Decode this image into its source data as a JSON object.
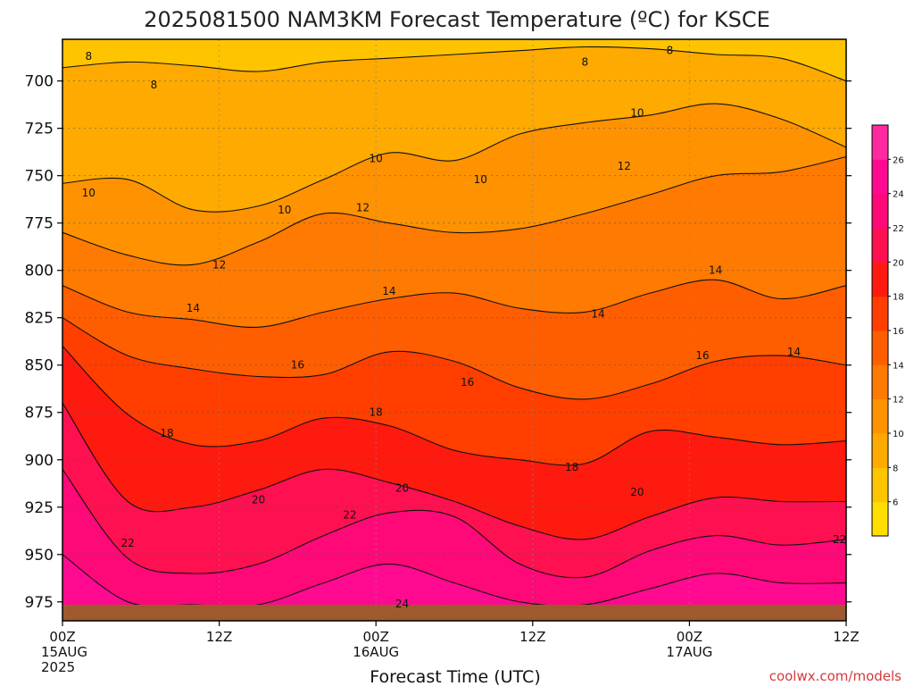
{
  "chart_data": {
    "type": "contour",
    "title": "2025081500 NAM3KM Forecast Temperature (ºC) for KSCE",
    "xlabel": "Forecast Time (UTC)",
    "ylabel": "",
    "credit": "coolwx.com/models",
    "x_ticks": [
      {
        "hour": 0,
        "line1": "00Z",
        "line2": "15AUG",
        "line3": "2025"
      },
      {
        "hour": 12,
        "line1": "12Z",
        "line2": "",
        "line3": ""
      },
      {
        "hour": 24,
        "line1": "00Z",
        "line2": "16AUG",
        "line3": ""
      },
      {
        "hour": 36,
        "line1": "12Z",
        "line2": "",
        "line3": ""
      },
      {
        "hour": 48,
        "line1": "00Z",
        "line2": "17AUG",
        "line3": ""
      },
      {
        "hour": 60,
        "line1": "12Z",
        "line2": "",
        "line3": ""
      }
    ],
    "xlim_hours": [
      0,
      60
    ],
    "y_ticks": [
      "700",
      "725",
      "750",
      "775",
      "800",
      "825",
      "850",
      "875",
      "900",
      "925",
      "950",
      "975"
    ],
    "ylim_hpa": [
      678,
      985
    ],
    "surface_pressure_hpa": 976,
    "grid": true,
    "colorbar": {
      "levels": [
        6,
        8,
        10,
        12,
        14,
        16,
        18,
        20,
        22,
        24,
        26
      ],
      "colors": [
        "#ffde00",
        "#ffc400",
        "#ffaa00",
        "#ff9200",
        "#ff7a00",
        "#ff5e00",
        "#ff3e00",
        "#ff1a10",
        "#ff1050",
        "#ff0878",
        "#ff0a90",
        "#ff2aa0"
      ]
    },
    "contour_levels": [
      8,
      10,
      12,
      14,
      16,
      18,
      20,
      22,
      24
    ],
    "contours": [
      {
        "level": 8,
        "pressure_hpa": [
          693,
          690,
          692,
          695,
          690,
          688,
          686,
          684,
          682,
          683,
          686,
          688,
          700
        ]
      },
      {
        "level": 10,
        "pressure_hpa": [
          754,
          752,
          768,
          766,
          752,
          738,
          742,
          728,
          722,
          718,
          712,
          720,
          735
        ]
      },
      {
        "level": 12,
        "pressure_hpa": [
          780,
          792,
          797,
          785,
          770,
          775,
          780,
          778,
          770,
          760,
          750,
          748,
          740
        ]
      },
      {
        "level": 14,
        "pressure_hpa": [
          808,
          822,
          826,
          830,
          822,
          815,
          812,
          820,
          822,
          812,
          805,
          815,
          808
        ]
      },
      {
        "level": 16,
        "pressure_hpa": [
          825,
          845,
          852,
          856,
          855,
          843,
          848,
          862,
          868,
          860,
          848,
          845,
          850
        ]
      },
      {
        "level": 18,
        "pressure_hpa": [
          840,
          876,
          892,
          890,
          878,
          882,
          895,
          900,
          902,
          885,
          888,
          892,
          890
        ]
      },
      {
        "level": 20,
        "pressure_hpa": [
          870,
          922,
          925,
          916,
          905,
          912,
          922,
          935,
          942,
          930,
          920,
          922,
          922
        ]
      },
      {
        "level": 22,
        "pressure_hpa": [
          905,
          952,
          960,
          955,
          940,
          928,
          930,
          955,
          962,
          948,
          940,
          945,
          942
        ]
      },
      {
        "level": 24,
        "pressure_hpa": [
          950,
          975,
          978,
          978,
          965,
          955,
          965,
          975,
          978,
          968,
          960,
          965,
          965
        ]
      }
    ],
    "contour_labels": [
      {
        "text": "8",
        "hour": 2,
        "hpa": 687
      },
      {
        "text": "8",
        "hour": 7,
        "hpa": 702
      },
      {
        "text": "8",
        "hour": 40,
        "hpa": 690
      },
      {
        "text": "8",
        "hour": 46.5,
        "hpa": 684
      },
      {
        "text": "10",
        "hour": 2,
        "hpa": 759
      },
      {
        "text": "10",
        "hour": 17,
        "hpa": 768
      },
      {
        "text": "10",
        "hour": 24,
        "hpa": 741
      },
      {
        "text": "10",
        "hour": 32,
        "hpa": 752
      },
      {
        "text": "10",
        "hour": 44,
        "hpa": 717
      },
      {
        "text": "12",
        "hour": 12,
        "hpa": 797
      },
      {
        "text": "12",
        "hour": 23,
        "hpa": 767
      },
      {
        "text": "12",
        "hour": 43,
        "hpa": 745
      },
      {
        "text": "14",
        "hour": 10,
        "hpa": 820
      },
      {
        "text": "14",
        "hour": 25,
        "hpa": 811
      },
      {
        "text": "14",
        "hour": 41,
        "hpa": 823
      },
      {
        "text": "14",
        "hour": 50,
        "hpa": 800
      },
      {
        "text": "14",
        "hour": 56,
        "hpa": 843
      },
      {
        "text": "16",
        "hour": 18,
        "hpa": 850
      },
      {
        "text": "16",
        "hour": 31,
        "hpa": 859
      },
      {
        "text": "16",
        "hour": 49,
        "hpa": 845
      },
      {
        "text": "18",
        "hour": 8,
        "hpa": 886
      },
      {
        "text": "18",
        "hour": 24,
        "hpa": 875
      },
      {
        "text": "18",
        "hour": 39,
        "hpa": 904
      },
      {
        "text": "20",
        "hour": 15,
        "hpa": 921
      },
      {
        "text": "20",
        "hour": 26,
        "hpa": 915
      },
      {
        "text": "20",
        "hour": 44,
        "hpa": 917
      },
      {
        "text": "22",
        "hour": 5,
        "hpa": 944
      },
      {
        "text": "22",
        "hour": 22,
        "hpa": 929
      },
      {
        "text": "22",
        "hour": 59.5,
        "hpa": 942
      },
      {
        "text": "24",
        "hour": 26,
        "hpa": 976
      }
    ]
  }
}
